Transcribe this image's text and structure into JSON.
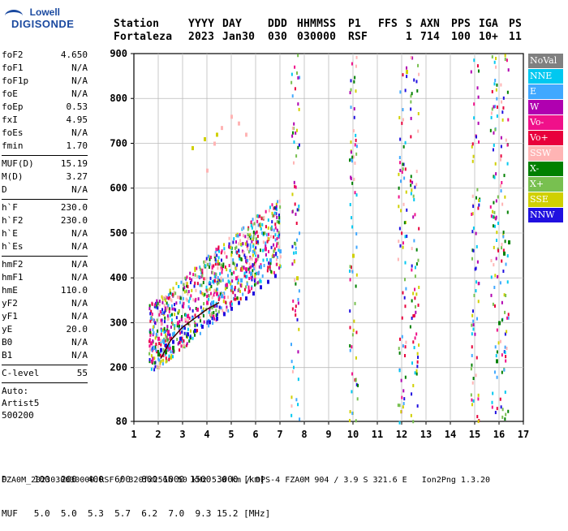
{
  "logo": {
    "line1": "Lowell",
    "line2": "DIGISONDE"
  },
  "header": {
    "row1": [
      {
        "label": "Station",
        "x": 140
      },
      {
        "label": "YYYY",
        "x": 232
      },
      {
        "label": "DAY",
        "x": 274
      },
      {
        "label": "DDD",
        "x": 330
      },
      {
        "label": "HHMMSS",
        "x": 366
      },
      {
        "label": "P1",
        "x": 429
      },
      {
        "label": "FFS",
        "x": 466
      },
      {
        "label": "S",
        "x": 500
      },
      {
        "label": "AXN",
        "x": 518
      },
      {
        "label": "PPS",
        "x": 556
      },
      {
        "label": "IGA",
        "x": 590
      },
      {
        "label": "PS",
        "x": 627
      }
    ],
    "row2": [
      {
        "value": "Fortaleza",
        "x": 140
      },
      {
        "value": "2023",
        "x": 232
      },
      {
        "value": "Jan30",
        "x": 274
      },
      {
        "value": "030",
        "x": 330
      },
      {
        "value": "030000",
        "x": 366
      },
      {
        "value": "RSF",
        "x": 429
      },
      {
        "value": "1",
        "x": 500
      },
      {
        "value": "714",
        "x": 518
      },
      {
        "value": "100",
        "x": 556
      },
      {
        "value": "10+",
        "x": 590
      },
      {
        "value": "11",
        "x": 627
      }
    ]
  },
  "params": {
    "group1": [
      {
        "name": "foF2",
        "value": "4.650"
      },
      {
        "name": "foF1",
        "value": "N/A"
      },
      {
        "name": "foF1p",
        "value": "N/A"
      },
      {
        "name": "foE",
        "value": "N/A"
      },
      {
        "name": "foEp",
        "value": "0.53"
      },
      {
        "name": "fxI",
        "value": "4.95"
      },
      {
        "name": "foEs",
        "value": "N/A"
      },
      {
        "name": "fmin",
        "value": "1.70"
      }
    ],
    "group2": [
      {
        "name": "MUF(D)",
        "value": "15.19"
      },
      {
        "name": "M(D)",
        "value": "3.27"
      },
      {
        "name": "D",
        "value": "N/A"
      }
    ],
    "group3": [
      {
        "name": "h`F",
        "value": "230.0"
      },
      {
        "name": "h`F2",
        "value": "230.0"
      },
      {
        "name": "h`E",
        "value": "N/A"
      },
      {
        "name": "h`Es",
        "value": "N/A"
      }
    ],
    "group4": [
      {
        "name": "hmF2",
        "value": "N/A"
      },
      {
        "name": "hmF1",
        "value": "N/A"
      },
      {
        "name": "hmE",
        "value": "110.0"
      },
      {
        "name": "yF2",
        "value": "N/A"
      },
      {
        "name": "yF1",
        "value": "N/A"
      },
      {
        "name": "yE",
        "value": "20.0"
      },
      {
        "name": "B0",
        "value": "N/A"
      },
      {
        "name": "B1",
        "value": "N/A"
      }
    ],
    "group5": [
      {
        "name": "C-level",
        "value": "55"
      }
    ],
    "auto": [
      "Auto:",
      "Artist5",
      "500200"
    ]
  },
  "legend": [
    {
      "label": "NoVal",
      "color": "#808080"
    },
    {
      "label": "NNE",
      "color": "#00c8f0"
    },
    {
      "label": "E",
      "color": "#40a8ff"
    },
    {
      "label": "W",
      "color": "#b000b0"
    },
    {
      "label": "Vo-",
      "color": "#f0108a"
    },
    {
      "label": "Vo+",
      "color": "#e8003c"
    },
    {
      "label": "SSW",
      "color": "#ffb4b4"
    },
    {
      "label": "X-",
      "color": "#008000"
    },
    {
      "label": "X+",
      "color": "#78c050"
    },
    {
      "label": "SSE",
      "color": "#d0d000"
    },
    {
      "label": "NNW",
      "color": "#2010e0"
    }
  ],
  "chart_data": {
    "type": "scatter",
    "xlim": [
      1,
      17
    ],
    "ylim": [
      80,
      900
    ],
    "x_ticks": [
      1,
      2,
      3,
      4,
      5,
      6,
      7,
      8,
      9,
      10,
      11,
      12,
      13,
      14,
      15,
      16,
      17
    ],
    "y_ticks": [
      80,
      200,
      300,
      400,
      500,
      600,
      700,
      800,
      900
    ],
    "grid": true,
    "legend_position": "right",
    "series": [
      {
        "name": "NNW",
        "x": [
          2.1,
          2.3,
          2.6,
          2.9,
          3.2,
          3.5,
          3.8,
          4.1,
          4.4,
          4.7,
          5.0,
          5.3,
          5.6,
          5.9,
          6.2,
          6.5,
          6.8
        ],
        "y": [
          240,
          250,
          258,
          265,
          275,
          283,
          292,
          302,
          310,
          320,
          332,
          345,
          355,
          366,
          380,
          392,
          405
        ]
      },
      {
        "name": "Vo-",
        "x": [
          1.7,
          2.0,
          2.4,
          2.8,
          3.2,
          3.6,
          4.0,
          4.4,
          4.8,
          5.2,
          5.6,
          6.0,
          6.4
        ],
        "y": [
          255,
          265,
          280,
          300,
          315,
          330,
          345,
          365,
          385,
          400,
          420,
          440,
          465
        ]
      },
      {
        "name": "E",
        "x": [
          1.8,
          2.2,
          2.6,
          3.0,
          3.4,
          3.8,
          4.2,
          4.6,
          5.0,
          5.4,
          5.8,
          6.2,
          6.6,
          7.0
        ],
        "y": [
          245,
          260,
          275,
          290,
          310,
          325,
          345,
          360,
          380,
          395,
          410,
          425,
          440,
          460
        ]
      },
      {
        "name": "X-",
        "x": [
          2.0,
          2.3,
          2.6,
          15.9,
          16.0,
          16.2,
          16.4
        ],
        "y": [
          230,
          235,
          245,
          215,
          300,
          455,
          480
        ]
      },
      {
        "name": "SSW",
        "x": [
          4.0,
          4.3,
          4.6,
          5.0,
          5.3,
          5.6
        ],
        "y": [
          640,
          700,
          735,
          760,
          745,
          720
        ]
      },
      {
        "name": "SSE",
        "x": [
          3.4,
          3.9,
          4.4,
          7.7,
          10.0,
          12.2
        ],
        "y": [
          690,
          710,
          720,
          400,
          450,
          860
        ]
      }
    ],
    "tracing": {
      "x": [
        2.1,
        2.5,
        3.0,
        3.5,
        4.0,
        4.5
      ],
      "y": [
        220,
        260,
        290,
        310,
        330,
        345
      ]
    },
    "xlabel": "",
    "ylabel": ""
  },
  "distance_table": {
    "row1_label": "D",
    "row1_values": [
      "100",
      "200",
      "400",
      "600",
      "800",
      "1000",
      "1500",
      "3000"
    ],
    "row1_unit": "[km]",
    "row2_label": "MUF",
    "row2_values": [
      "5.0",
      "5.0",
      "5.3",
      "5.7",
      "6.2",
      "7.0",
      "9.3",
      "15.2"
    ],
    "row2_unit": "[MHz]"
  },
  "footer": "FZA0M_2023030030000.RSF / 320fx256h 50 kHz 5.0 km / DPS-4 FZA0M 904 / 3.9 S 321.6 E   Ion2Png 1.3.20"
}
